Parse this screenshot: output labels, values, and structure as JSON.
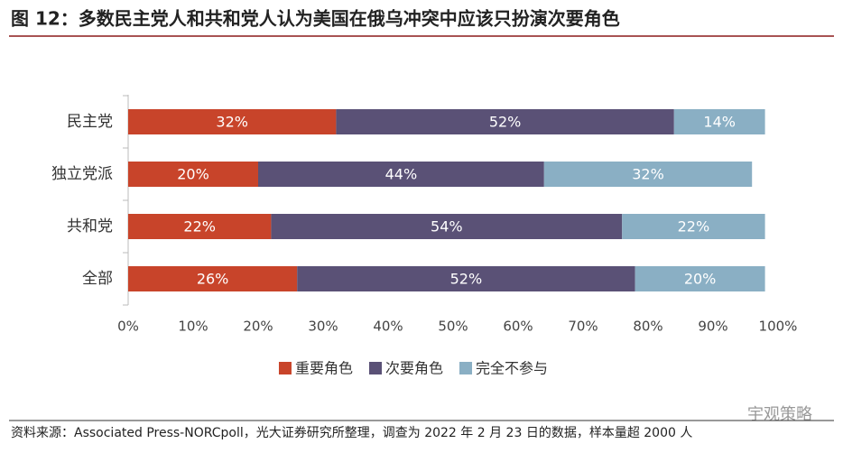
{
  "chart_data": {
    "type": "stacked_barh",
    "title": "图 12：多数民主党人和共和党人认为美国在俄乌冲突中应该只扮演次要角色",
    "categories": [
      "民主党",
      "独立党派",
      "共和党",
      "全部"
    ],
    "series": [
      {
        "name": "重要角色",
        "color": "#c8442a",
        "values": [
          32,
          20,
          22,
          26
        ],
        "value_labels": [
          "32%",
          "20%",
          "22%",
          "26%"
        ]
      },
      {
        "name": "次要角色",
        "color": "#5a5176",
        "values": [
          52,
          44,
          54,
          52
        ],
        "value_labels": [
          "52%",
          "44%",
          "54%",
          "52%"
        ]
      },
      {
        "name": "完全不参与",
        "color": "#8aafc4",
        "values": [
          14,
          32,
          22,
          20
        ],
        "value_labels": [
          "14%",
          "32%",
          "22%",
          "20%"
        ]
      }
    ],
    "xlim": [
      0,
      100
    ],
    "xticks": [
      {
        "value": 0,
        "label": "0%"
      },
      {
        "value": 10,
        "label": "10%"
      },
      {
        "value": 20,
        "label": "20%"
      },
      {
        "value": 30,
        "label": "30%"
      },
      {
        "value": 40,
        "label": "40%"
      },
      {
        "value": 50,
        "label": "50%"
      },
      {
        "value": 60,
        "label": "60%"
      },
      {
        "value": 70,
        "label": "70%"
      },
      {
        "value": 80,
        "label": "80%"
      },
      {
        "value": 90,
        "label": "90%"
      },
      {
        "value": 100,
        "label": "100%"
      }
    ],
    "legend": "bottom",
    "watermark": "宇观策略",
    "source": "资料来源：Associated Press-NORCpoll，光大证券研究所整理，调查为 2022 年 2 月 23 日的数据，样本量超 2000 人"
  }
}
